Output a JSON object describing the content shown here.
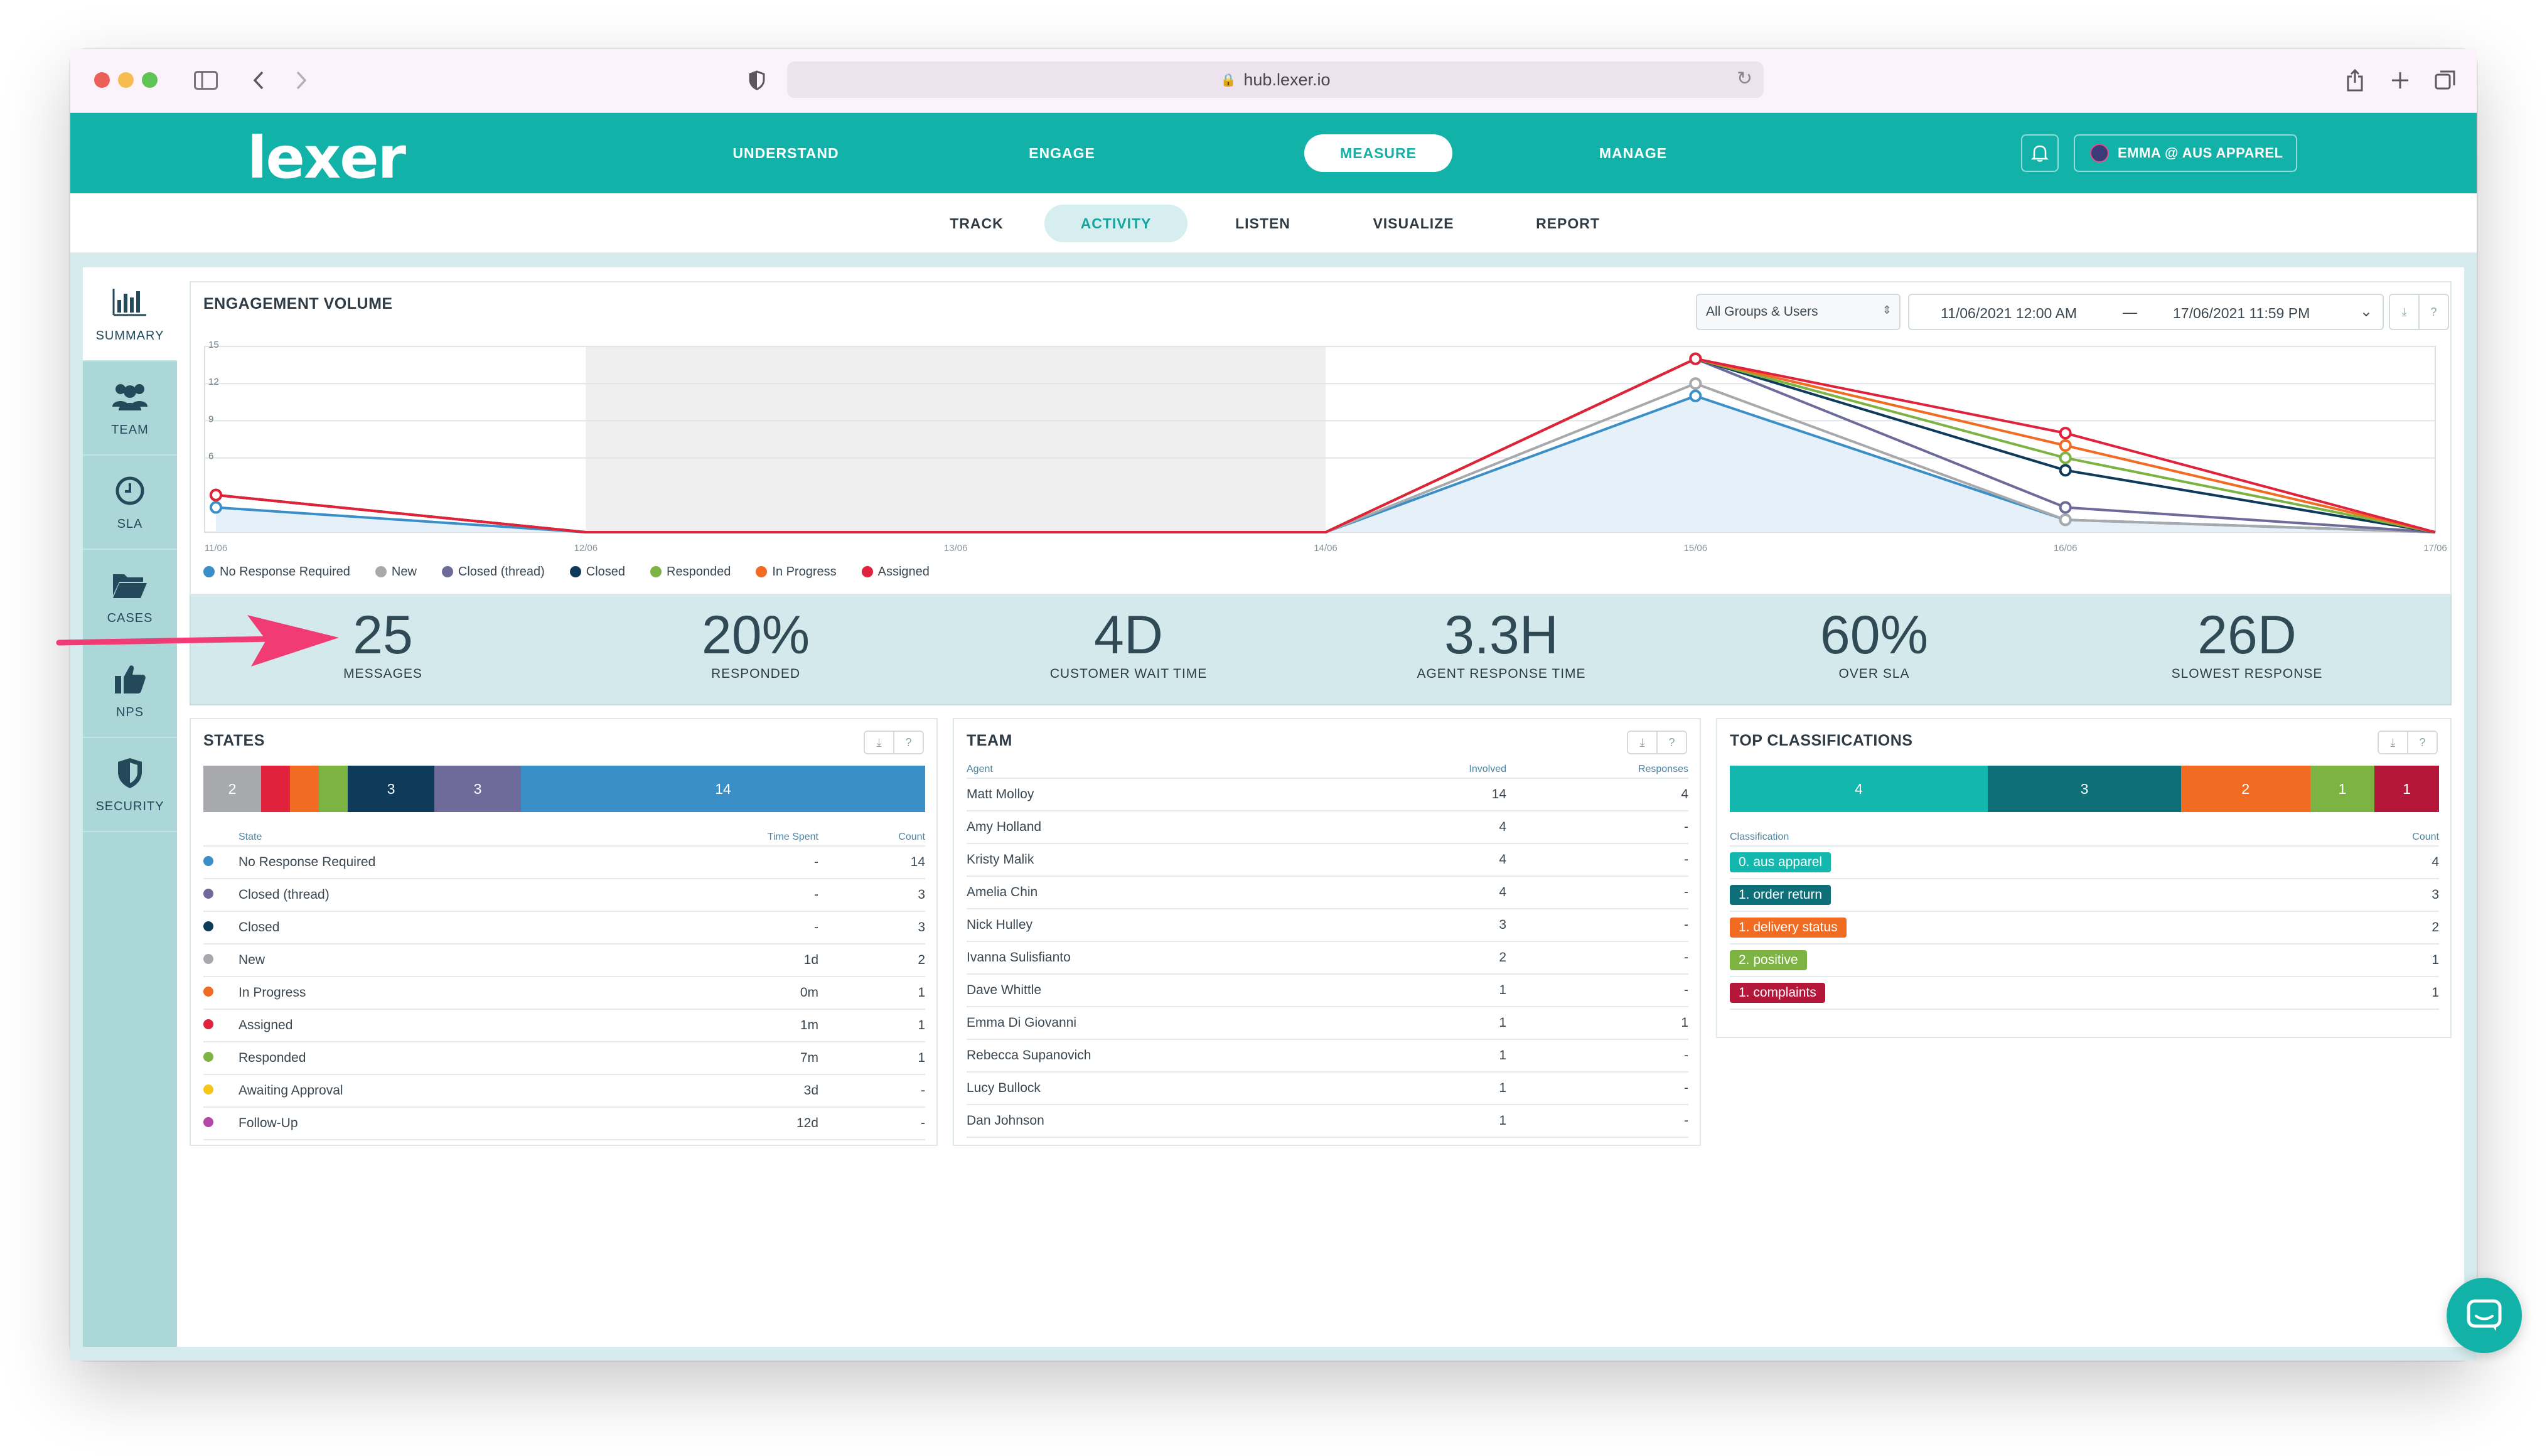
{
  "browser": {
    "url": "hub.lexer.io"
  },
  "app": {
    "logo": "lexer",
    "nav": [
      "UNDERSTAND",
      "ENGAGE",
      "MEASURE",
      "MANAGE"
    ],
    "active_nav": "MEASURE",
    "user": "EMMA @ AUS APPAREL"
  },
  "subnav": {
    "items": [
      "TRACK",
      "ACTIVITY",
      "LISTEN",
      "VISUALIZE",
      "REPORT"
    ],
    "active": "ACTIVITY"
  },
  "sidebar": {
    "items": [
      {
        "label": "SUMMARY",
        "icon": "bar-chart-icon"
      },
      {
        "label": "TEAM",
        "icon": "team-icon"
      },
      {
        "label": "SLA",
        "icon": "clock-icon"
      },
      {
        "label": "CASES",
        "icon": "folder-icon"
      },
      {
        "label": "NPS",
        "icon": "thumbs-up-icon"
      },
      {
        "label": "SECURITY",
        "icon": "shield-icon"
      }
    ]
  },
  "engagement": {
    "title": "ENGAGEMENT VOLUME",
    "group_filter": "All Groups & Users",
    "date_from": "11/06/2021 12:00 AM",
    "date_sep": "—",
    "date_to": "17/06/2021 11:59 PM"
  },
  "chart_data": {
    "type": "line",
    "x": [
      "11/06",
      "12/06",
      "13/06",
      "14/06",
      "15/06",
      "16/06",
      "17/06"
    ],
    "ylim": [
      0,
      15
    ],
    "yticks": [
      15,
      12,
      9,
      6
    ],
    "shaded_range": [
      "12/06",
      "14/06"
    ],
    "series": [
      {
        "name": "No Response Required",
        "color": "#3a8fc8",
        "values": [
          2,
          0,
          0,
          0,
          11,
          1,
          0
        ]
      },
      {
        "name": "New",
        "color": "#a7a9ac",
        "values": [
          3,
          0,
          0,
          0,
          12,
          1,
          0
        ]
      },
      {
        "name": "Closed (thread)",
        "color": "#6e6b9a",
        "values": [
          3,
          0,
          0,
          0,
          14,
          2,
          0
        ]
      },
      {
        "name": "Closed",
        "color": "#0f3b5a",
        "values": [
          3,
          0,
          0,
          0,
          14,
          5,
          0
        ]
      },
      {
        "name": "Responded",
        "color": "#7cb342",
        "values": [
          3,
          0,
          0,
          0,
          14,
          6,
          0
        ]
      },
      {
        "name": "In Progress",
        "color": "#f26b23",
        "values": [
          3,
          0,
          0,
          0,
          14,
          7,
          0
        ]
      },
      {
        "name": "Assigned",
        "color": "#e1223c",
        "values": [
          3,
          0,
          0,
          0,
          14,
          8,
          0
        ]
      }
    ]
  },
  "stats": [
    {
      "value": "25",
      "label": "MESSAGES"
    },
    {
      "value": "20%",
      "label": "RESPONDED"
    },
    {
      "value": "4D",
      "label": "CUSTOMER WAIT TIME"
    },
    {
      "value": "3.3H",
      "label": "AGENT RESPONSE TIME"
    },
    {
      "value": "60%",
      "label": "OVER SLA"
    },
    {
      "value": "26D",
      "label": "SLOWEST RESPONSE"
    }
  ],
  "states": {
    "title": "STATES",
    "bar": [
      {
        "label": "2",
        "value": 2,
        "color": "#a7a9ac"
      },
      {
        "label": "",
        "value": 1,
        "color": "#e1223c"
      },
      {
        "label": "",
        "value": 1,
        "color": "#f26b23"
      },
      {
        "label": "",
        "value": 1,
        "color": "#7cb342"
      },
      {
        "label": "3",
        "value": 3,
        "color": "#0f3b5a"
      },
      {
        "label": "3",
        "value": 3,
        "color": "#6e6b9a"
      },
      {
        "label": "14",
        "value": 14,
        "color": "#3a8fc8"
      }
    ],
    "headers": {
      "state": "State",
      "time": "Time Spent",
      "count": "Count"
    },
    "rows": [
      {
        "color": "#3a8fc8",
        "state": "No Response Required",
        "time": "-",
        "count": "14"
      },
      {
        "color": "#6e6b9a",
        "state": "Closed (thread)",
        "time": "-",
        "count": "3"
      },
      {
        "color": "#0f3b5a",
        "state": "Closed",
        "time": "-",
        "count": "3"
      },
      {
        "color": "#a7a9ac",
        "state": "New",
        "time": "1d",
        "count": "2"
      },
      {
        "color": "#f26b23",
        "state": "In Progress",
        "time": "0m",
        "count": "1"
      },
      {
        "color": "#e1223c",
        "state": "Assigned",
        "time": "1m",
        "count": "1"
      },
      {
        "color": "#7cb342",
        "state": "Responded",
        "time": "7m",
        "count": "1"
      },
      {
        "color": "#f5c518",
        "state": "Awaiting Approval",
        "time": "3d",
        "count": "-"
      },
      {
        "color": "#b04aa6",
        "state": "Follow-Up",
        "time": "12d",
        "count": "-"
      }
    ]
  },
  "team": {
    "title": "TEAM",
    "headers": {
      "agent": "Agent",
      "involved": "Involved",
      "responses": "Responses"
    },
    "rows": [
      {
        "agent": "Matt Molloy",
        "involved": "14",
        "responses": "4"
      },
      {
        "agent": "Amy Holland",
        "involved": "4",
        "responses": "-"
      },
      {
        "agent": "Kristy Malik",
        "involved": "4",
        "responses": "-"
      },
      {
        "agent": "Amelia Chin",
        "involved": "4",
        "responses": "-"
      },
      {
        "agent": "Nick Hulley",
        "involved": "3",
        "responses": "-"
      },
      {
        "agent": "Ivanna Sulisfianto",
        "involved": "2",
        "responses": "-"
      },
      {
        "agent": "Dave Whittle",
        "involved": "1",
        "responses": "-"
      },
      {
        "agent": "Emma Di Giovanni",
        "involved": "1",
        "responses": "1"
      },
      {
        "agent": "Rebecca Supanovich",
        "involved": "1",
        "responses": "-"
      },
      {
        "agent": "Lucy Bullock",
        "involved": "1",
        "responses": "-"
      },
      {
        "agent": "Dan Johnson",
        "involved": "1",
        "responses": "-"
      }
    ]
  },
  "classifications": {
    "title": "TOP CLASSIFICATIONS",
    "bar": [
      {
        "label": "4",
        "value": 4,
        "color": "#13b7ad"
      },
      {
        "label": "3",
        "value": 3,
        "color": "#0e6f78"
      },
      {
        "label": "2",
        "value": 2,
        "color": "#f26b23"
      },
      {
        "label": "1",
        "value": 1,
        "color": "#7cb342"
      },
      {
        "label": "1",
        "value": 1,
        "color": "#b5173a"
      }
    ],
    "headers": {
      "classification": "Classification",
      "count": "Count"
    },
    "rows": [
      {
        "tag": "0. aus apparel",
        "color": "#13b7ad",
        "count": "4"
      },
      {
        "tag": "1. order return",
        "color": "#0e6f78",
        "count": "3"
      },
      {
        "tag": "1. delivery status",
        "color": "#f26b23",
        "count": "2"
      },
      {
        "tag": "2. positive",
        "color": "#7cb342",
        "count": "1"
      },
      {
        "tag": "1. complaints",
        "color": "#b5173a",
        "count": "1"
      }
    ]
  },
  "panel_buttons": {
    "download": "⤓",
    "help": "?"
  }
}
